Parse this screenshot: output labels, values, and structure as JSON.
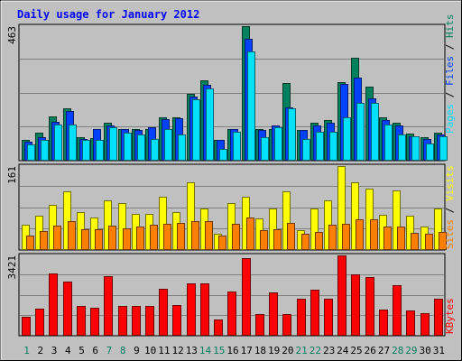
{
  "chart_data": [
    {
      "type": "bar",
      "title": "Daily usage for January 2012",
      "categories": [
        "1",
        "2",
        "3",
        "4",
        "5",
        "6",
        "7",
        "8",
        "9",
        "10",
        "11",
        "12",
        "13",
        "14",
        "15",
        "16",
        "17",
        "18",
        "19",
        "20",
        "21",
        "22",
        "23",
        "24",
        "25",
        "26",
        "27",
        "28",
        "29",
        "30",
        "31"
      ],
      "weekend_days": [
        "1",
        "7",
        "8",
        "14",
        "15",
        "21",
        "22",
        "28",
        "29"
      ],
      "ymax_label": "463",
      "ymax": 463,
      "series": [
        {
          "name": "Hits",
          "color": "#00805c",
          "values": [
            70,
            95,
            153,
            180,
            80,
            78,
            130,
            110,
            110,
            110,
            150,
            150,
            230,
            277,
            72,
            110,
            463,
            110,
            110,
            268,
            105,
            130,
            140,
            270,
            355,
            255,
            150,
            130,
            92,
            80,
            95
          ]
        },
        {
          "name": "Files",
          "color": "#0040ff",
          "values": [
            65,
            80,
            135,
            170,
            75,
            110,
            120,
            110,
            105,
            115,
            142,
            145,
            220,
            260,
            70,
            110,
            420,
            105,
            120,
            183,
            105,
            120,
            130,
            265,
            285,
            215,
            140,
            120,
            85,
            75,
            90
          ]
        },
        {
          "name": "Pages",
          "color": "#00e0ff",
          "values": [
            55,
            70,
            125,
            125,
            70,
            70,
            115,
            95,
            90,
            75,
            110,
            90,
            210,
            250,
            40,
            100,
            375,
            80,
            115,
            180,
            75,
            100,
            100,
            150,
            200,
            200,
            125,
            90,
            85,
            60,
            85
          ]
        }
      ]
    },
    {
      "type": "bar",
      "categories": [
        "1",
        "2",
        "3",
        "4",
        "5",
        "6",
        "7",
        "8",
        "9",
        "10",
        "11",
        "12",
        "13",
        "14",
        "15",
        "16",
        "17",
        "18",
        "19",
        "20",
        "21",
        "22",
        "23",
        "24",
        "25",
        "26",
        "27",
        "28",
        "29",
        "30",
        "31"
      ],
      "ymax_label": "161",
      "ymax": 161,
      "series": [
        {
          "name": "Visits",
          "color": "#ffff00",
          "values": [
            48,
            65,
            87,
            113,
            72,
            62,
            95,
            90,
            70,
            70,
            103,
            72,
            130,
            80,
            32,
            90,
            103,
            60,
            80,
            113,
            38,
            80,
            95,
            161,
            130,
            117,
            68,
            115,
            65,
            45,
            80
          ]
        },
        {
          "name": "Sites",
          "color": "#ff8000",
          "values": [
            27,
            37,
            47,
            55,
            40,
            40,
            47,
            42,
            45,
            48,
            50,
            52,
            55,
            55,
            28,
            50,
            62,
            38,
            40,
            52,
            32,
            35,
            48,
            50,
            58,
            58,
            45,
            45,
            33,
            32,
            35
          ]
        }
      ]
    },
    {
      "type": "bar",
      "categories": [
        "1",
        "2",
        "3",
        "4",
        "5",
        "6",
        "7",
        "8",
        "9",
        "10",
        "11",
        "12",
        "13",
        "14",
        "15",
        "16",
        "17",
        "18",
        "19",
        "20",
        "21",
        "22",
        "23",
        "24",
        "25",
        "26",
        "27",
        "28",
        "29",
        "30",
        "31"
      ],
      "ymax_label": "3421",
      "ymax": 3421,
      "series": [
        {
          "name": "KBytes",
          "color": "#ff0000",
          "values": [
            820,
            1150,
            2650,
            2300,
            1250,
            1190,
            2550,
            1280,
            1280,
            1280,
            1990,
            1300,
            2220,
            2220,
            710,
            1900,
            3320,
            930,
            1860,
            940,
            1560,
            1960,
            1590,
            3421,
            2620,
            2500,
            1100,
            2160,
            1080,
            950,
            1560
          ]
        }
      ]
    }
  ]
}
